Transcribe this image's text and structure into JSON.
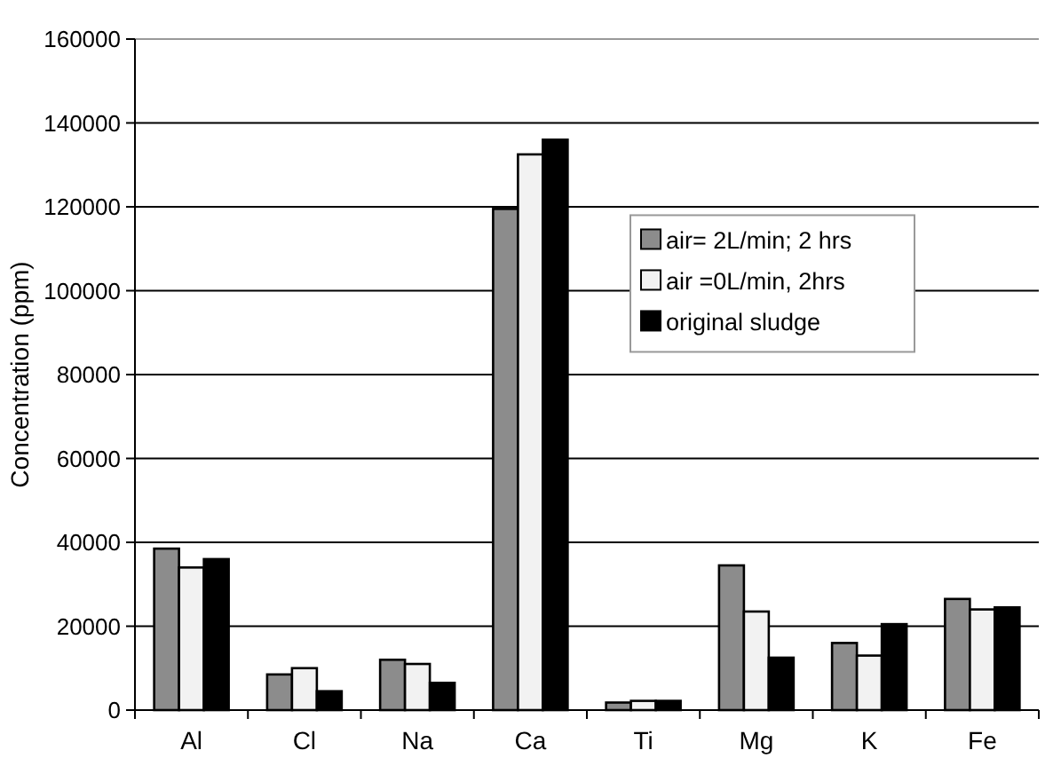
{
  "chart_data": {
    "type": "bar",
    "ylabel": "Concentration (ppm)",
    "categories": [
      "Al",
      "Cl",
      "Na",
      "Ca",
      "Ti",
      "Mg",
      "K",
      "Fe"
    ],
    "series": [
      {
        "name": "air= 2L/min; 2 hrs",
        "color": "#8c8c8c",
        "values": [
          38500,
          8500,
          12000,
          119500,
          1800,
          34500,
          16000,
          26500
        ]
      },
      {
        "name": "air =0L/min, 2hrs",
        "color": "#f2f2f2",
        "values": [
          34000,
          10000,
          11000,
          132500,
          2200,
          23500,
          13000,
          24000
        ]
      },
      {
        "name": "original sludge",
        "color": "#000000",
        "values": [
          36000,
          4500,
          6500,
          136000,
          2200,
          12500,
          20500,
          24500
        ]
      }
    ],
    "ylim": [
      0,
      160000
    ],
    "yticks": [
      0,
      20000,
      40000,
      60000,
      80000,
      100000,
      120000,
      140000,
      160000
    ],
    "grid": "y",
    "legend": "top right"
  }
}
